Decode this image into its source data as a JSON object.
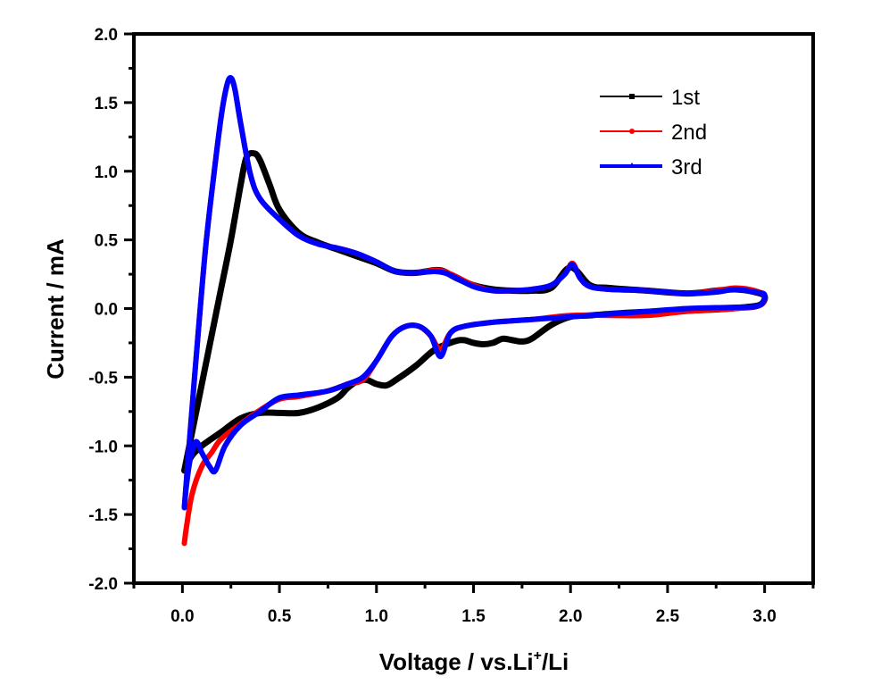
{
  "chart_data": {
    "type": "line",
    "title": "",
    "xlabel": "Voltage / vs.Li+/Li",
    "xlabel_parts": {
      "main": "Voltage / vs.Li",
      "sup": "+",
      "tail": "/Li"
    },
    "ylabel": "Current / mA",
    "xlim": [
      -0.25,
      3.25
    ],
    "ylim": [
      -2.0,
      2.0
    ],
    "xticks": [
      "0.0",
      "0.5",
      "1.0",
      "1.5",
      "2.0",
      "2.5",
      "3.0"
    ],
    "xtick_values": [
      0.0,
      0.5,
      1.0,
      1.5,
      2.0,
      2.5,
      3.0
    ],
    "xminor_values": [
      -0.25,
      0.25,
      0.75,
      1.25,
      1.75,
      2.25,
      2.75,
      3.25
    ],
    "yticks": [
      "2.0",
      "1.5",
      "1.0",
      "0.5",
      "0.0",
      "-0.5",
      "-1.0",
      "-1.5",
      "-2.0"
    ],
    "ytick_values": [
      2.0,
      1.5,
      1.0,
      0.5,
      0.0,
      -0.5,
      -1.0,
      -1.5,
      -2.0
    ],
    "yminor_values": [
      1.75,
      1.25,
      0.75,
      0.25,
      -0.25,
      -0.75,
      -1.25,
      -1.75
    ],
    "grid": false,
    "legend_position": "top-right",
    "series": [
      {
        "name": "1st",
        "color": "#000000",
        "marker": "square",
        "x": [
          0.01,
          0.05,
          0.1,
          0.15,
          0.2,
          0.25,
          0.3,
          0.33,
          0.37,
          0.4,
          0.45,
          0.5,
          0.6,
          0.7,
          0.8,
          0.9,
          1.0,
          1.1,
          1.2,
          1.3,
          1.35,
          1.4,
          1.5,
          1.6,
          1.7,
          1.8,
          1.9,
          2.0,
          2.1,
          2.2,
          2.4,
          2.6,
          2.75,
          2.85,
          2.95,
          3.0,
          2.98,
          2.9,
          2.7,
          2.5,
          2.3,
          2.1,
          2.0,
          1.9,
          1.8,
          1.75,
          1.7,
          1.65,
          1.6,
          1.55,
          1.5,
          1.45,
          1.4,
          1.3,
          1.2,
          1.1,
          1.05,
          1.0,
          0.95,
          0.9,
          0.85,
          0.8,
          0.7,
          0.6,
          0.5,
          0.4,
          0.3,
          0.2,
          0.1,
          0.05,
          0.02,
          0.01
        ],
        "y": [
          -1.18,
          -0.9,
          -0.55,
          -0.2,
          0.15,
          0.5,
          0.9,
          1.1,
          1.13,
          1.08,
          0.9,
          0.72,
          0.55,
          0.48,
          0.43,
          0.38,
          0.33,
          0.27,
          0.26,
          0.28,
          0.27,
          0.23,
          0.17,
          0.14,
          0.13,
          0.13,
          0.15,
          0.3,
          0.17,
          0.15,
          0.13,
          0.11,
          0.13,
          0.14,
          0.12,
          0.09,
          0.03,
          0.01,
          -0.01,
          -0.02,
          -0.03,
          -0.05,
          -0.06,
          -0.12,
          -0.22,
          -0.24,
          -0.23,
          -0.22,
          -0.25,
          -0.26,
          -0.25,
          -0.23,
          -0.24,
          -0.3,
          -0.42,
          -0.52,
          -0.56,
          -0.55,
          -0.52,
          -0.53,
          -0.58,
          -0.65,
          -0.72,
          -0.76,
          -0.76,
          -0.76,
          -0.8,
          -0.9,
          -1.0,
          -1.07,
          -1.15,
          -1.18
        ]
      },
      {
        "name": "2nd",
        "color": "#ff0000",
        "marker": "circle",
        "x": [
          0.01,
          0.04,
          0.08,
          0.12,
          0.16,
          0.2,
          0.23,
          0.25,
          0.27,
          0.3,
          0.35,
          0.4,
          0.5,
          0.6,
          0.7,
          0.8,
          0.9,
          1.0,
          1.1,
          1.2,
          1.3,
          1.35,
          1.4,
          1.5,
          1.6,
          1.7,
          1.8,
          1.9,
          1.97,
          2.01,
          2.05,
          2.1,
          2.2,
          2.4,
          2.6,
          2.75,
          2.85,
          2.95,
          3.0,
          2.97,
          2.85,
          2.6,
          2.4,
          2.2,
          2.0,
          1.8,
          1.6,
          1.45,
          1.38,
          1.33,
          1.28,
          1.22,
          1.15,
          1.08,
          1.0,
          0.93,
          0.85,
          0.75,
          0.6,
          0.5,
          0.4,
          0.3,
          0.2,
          0.15,
          0.1,
          0.05,
          0.02,
          0.01
        ],
        "y": [
          -1.45,
          -0.9,
          -0.2,
          0.45,
          0.95,
          1.4,
          1.63,
          1.67,
          1.6,
          1.35,
          0.98,
          0.8,
          0.65,
          0.53,
          0.47,
          0.44,
          0.4,
          0.34,
          0.27,
          0.26,
          0.28,
          0.27,
          0.24,
          0.17,
          0.13,
          0.13,
          0.14,
          0.17,
          0.25,
          0.33,
          0.22,
          0.16,
          0.14,
          0.13,
          0.11,
          0.13,
          0.15,
          0.13,
          0.09,
          0.02,
          0.0,
          -0.02,
          -0.05,
          -0.05,
          -0.05,
          -0.08,
          -0.1,
          -0.13,
          -0.18,
          -0.3,
          -0.2,
          -0.13,
          -0.13,
          -0.2,
          -0.38,
          -0.52,
          -0.55,
          -0.6,
          -0.64,
          -0.66,
          -0.74,
          -0.84,
          -0.95,
          -1.05,
          -1.15,
          -1.35,
          -1.6,
          -1.71
        ]
      },
      {
        "name": "3rd",
        "color": "#0000ff",
        "marker": "triangle",
        "x": [
          0.01,
          0.04,
          0.08,
          0.12,
          0.16,
          0.2,
          0.23,
          0.25,
          0.27,
          0.3,
          0.35,
          0.4,
          0.5,
          0.6,
          0.7,
          0.8,
          0.9,
          1.0,
          1.1,
          1.2,
          1.3,
          1.35,
          1.4,
          1.5,
          1.6,
          1.7,
          1.8,
          1.9,
          1.97,
          2.01,
          2.05,
          2.1,
          2.2,
          2.4,
          2.6,
          2.75,
          2.85,
          2.95,
          3.0,
          2.97,
          2.85,
          2.6,
          2.4,
          2.2,
          2.0,
          1.8,
          1.6,
          1.45,
          1.38,
          1.33,
          1.28,
          1.22,
          1.15,
          1.08,
          1.0,
          0.93,
          0.85,
          0.75,
          0.6,
          0.5,
          0.4,
          0.3,
          0.22,
          0.17,
          0.14,
          0.1,
          0.07,
          0.04,
          0.02,
          0.01
        ],
        "y": [
          -1.45,
          -0.9,
          -0.2,
          0.45,
          0.95,
          1.4,
          1.63,
          1.68,
          1.6,
          1.35,
          0.98,
          0.8,
          0.65,
          0.53,
          0.47,
          0.44,
          0.4,
          0.34,
          0.27,
          0.26,
          0.27,
          0.26,
          0.23,
          0.16,
          0.13,
          0.13,
          0.14,
          0.17,
          0.25,
          0.32,
          0.22,
          0.16,
          0.14,
          0.13,
          0.11,
          0.12,
          0.14,
          0.12,
          0.1,
          0.02,
          0.01,
          0.0,
          -0.02,
          -0.04,
          -0.06,
          -0.08,
          -0.1,
          -0.13,
          -0.18,
          -0.35,
          -0.2,
          -0.13,
          -0.13,
          -0.2,
          -0.38,
          -0.5,
          -0.55,
          -0.6,
          -0.63,
          -0.65,
          -0.75,
          -0.85,
          -1.0,
          -1.18,
          -1.15,
          -1.05,
          -0.97,
          -1.1,
          -1.3,
          -1.45
        ]
      }
    ]
  }
}
